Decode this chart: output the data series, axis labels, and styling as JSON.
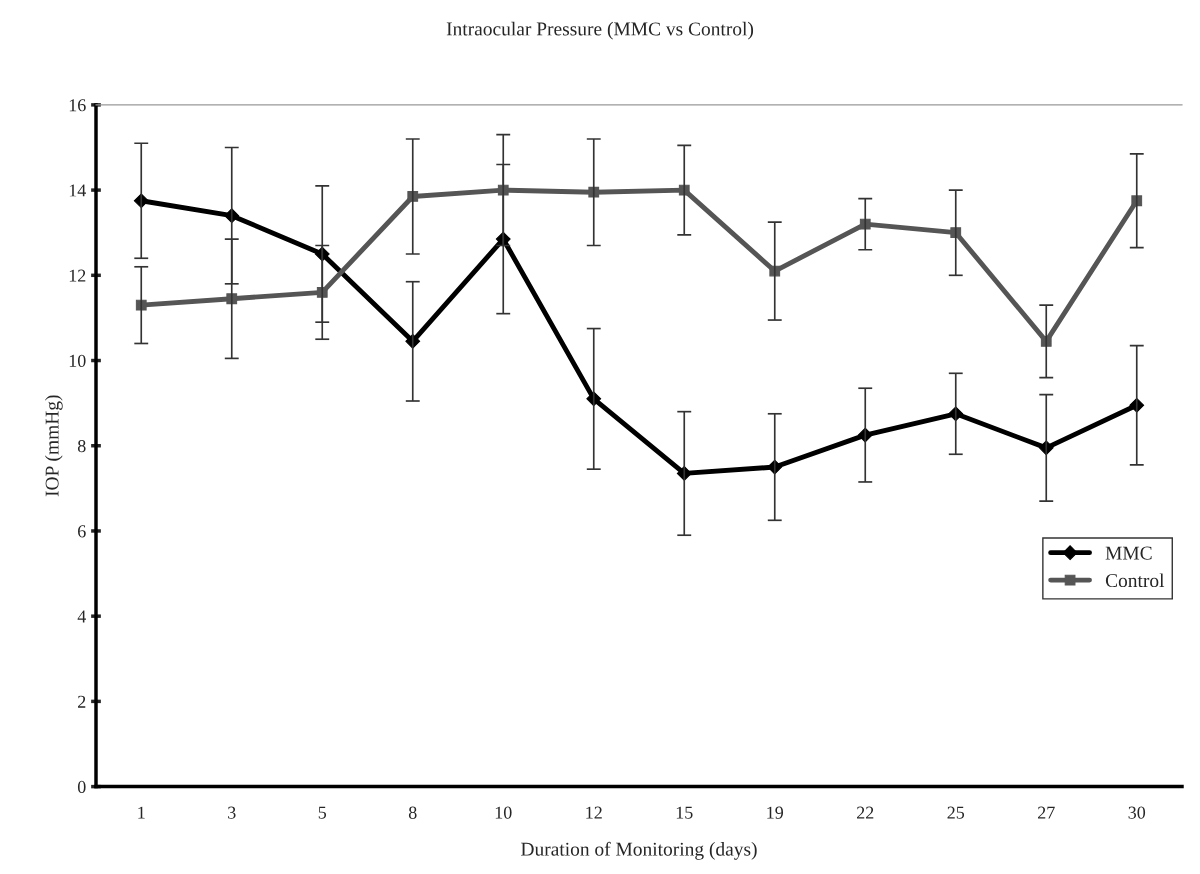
{
  "chart_data": {
    "type": "line",
    "title": "Intraocular Pressure (MMC vs Control)",
    "xlabel": "Duration of Monitoring (days)",
    "ylabel": "IOP (mmHg)",
    "categories": [
      "1",
      "3",
      "5",
      "8",
      "10",
      "12",
      "15",
      "19",
      "22",
      "25",
      "27",
      "30"
    ],
    "series": [
      {
        "name": "MMC",
        "color": "#000000",
        "marker": "diamond",
        "values": [
          13.75,
          13.4,
          12.5,
          10.45,
          12.85,
          9.1,
          7.35,
          7.5,
          8.25,
          8.75,
          7.95,
          8.95
        ],
        "errors": [
          1.35,
          1.6,
          1.6,
          1.4,
          1.75,
          1.65,
          1.45,
          1.25,
          1.1,
          0.95,
          1.25,
          1.4
        ]
      },
      {
        "name": "Control",
        "color": "#555555",
        "marker": "square",
        "values": [
          11.3,
          11.45,
          11.6,
          13.85,
          14.0,
          13.95,
          14.0,
          12.1,
          13.2,
          13.0,
          10.45,
          13.75
        ],
        "errors": [
          0.9,
          1.4,
          1.1,
          1.35,
          1.3,
          1.25,
          1.05,
          1.15,
          0.6,
          1.0,
          0.85,
          1.1
        ]
      }
    ],
    "ylim": [
      0,
      16
    ],
    "yticks": [
      0,
      2,
      4,
      6,
      8,
      10,
      12,
      14,
      16
    ],
    "grid": false,
    "legend": "right",
    "line_style": "solid"
  }
}
